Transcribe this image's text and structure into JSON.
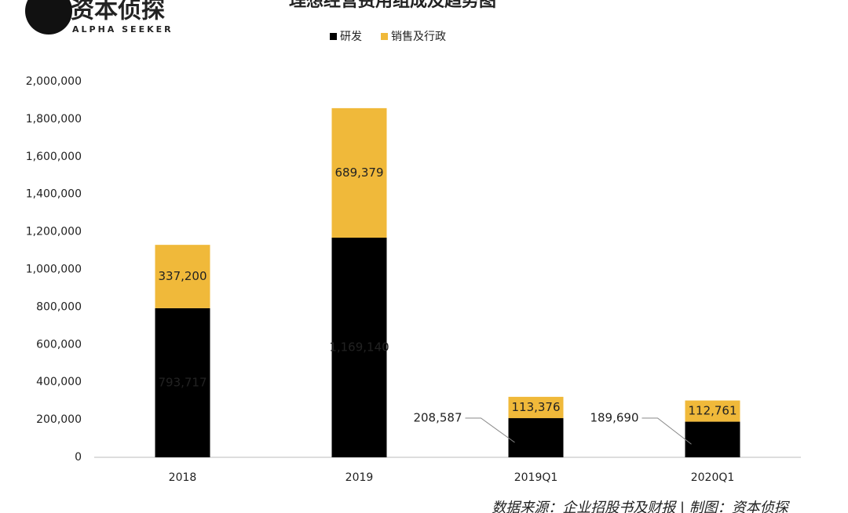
{
  "chart_data": {
    "type": "stacked_bar",
    "title": "理想经营费用组成及趋势图",
    "logo_text": "资本侦探",
    "logo_subtitle": "ALPHA SEEKER",
    "source": "数据来源：企业招股书及财报 | 制图：资本侦探",
    "categories": [
      "2018",
      "2019",
      "2019Q1",
      "2020Q1"
    ],
    "series": [
      {
        "name": "研发",
        "color": "#000000",
        "values": [
          793717,
          1169140,
          208587,
          189690
        ],
        "value_labels": [
          "793,717",
          "1,169,140",
          "208,587",
          "189,690"
        ]
      },
      {
        "name": "销售及行政",
        "color": "#f0b93a",
        "values": [
          337200,
          689379,
          113376,
          112761
        ],
        "value_labels": [
          "337,200",
          "689,379",
          "113,376",
          "112,761"
        ]
      }
    ],
    "ylim": [
      0,
      2000000
    ],
    "yticks": [
      0,
      {
        "value": 200000,
        "label": "200,000"
      },
      {
        "value": 400000,
        "label": "400,000"
      },
      {
        "value": 600000,
        "label": "600,000"
      },
      {
        "value": 800000,
        "label": "800,000"
      },
      {
        "value": 1000000,
        "label": "1,000,000"
      },
      {
        "value": 1200000,
        "label": "1,200,000"
      },
      {
        "value": 1400000,
        "label": "1,400,000"
      },
      {
        "value": 1600000,
        "label": "1,600,000"
      },
      {
        "value": 1800000,
        "label": "1,800,000"
      },
      {
        "value": 2000000,
        "label": "2,000,000"
      }
    ],
    "grid": false,
    "legend": "top"
  }
}
